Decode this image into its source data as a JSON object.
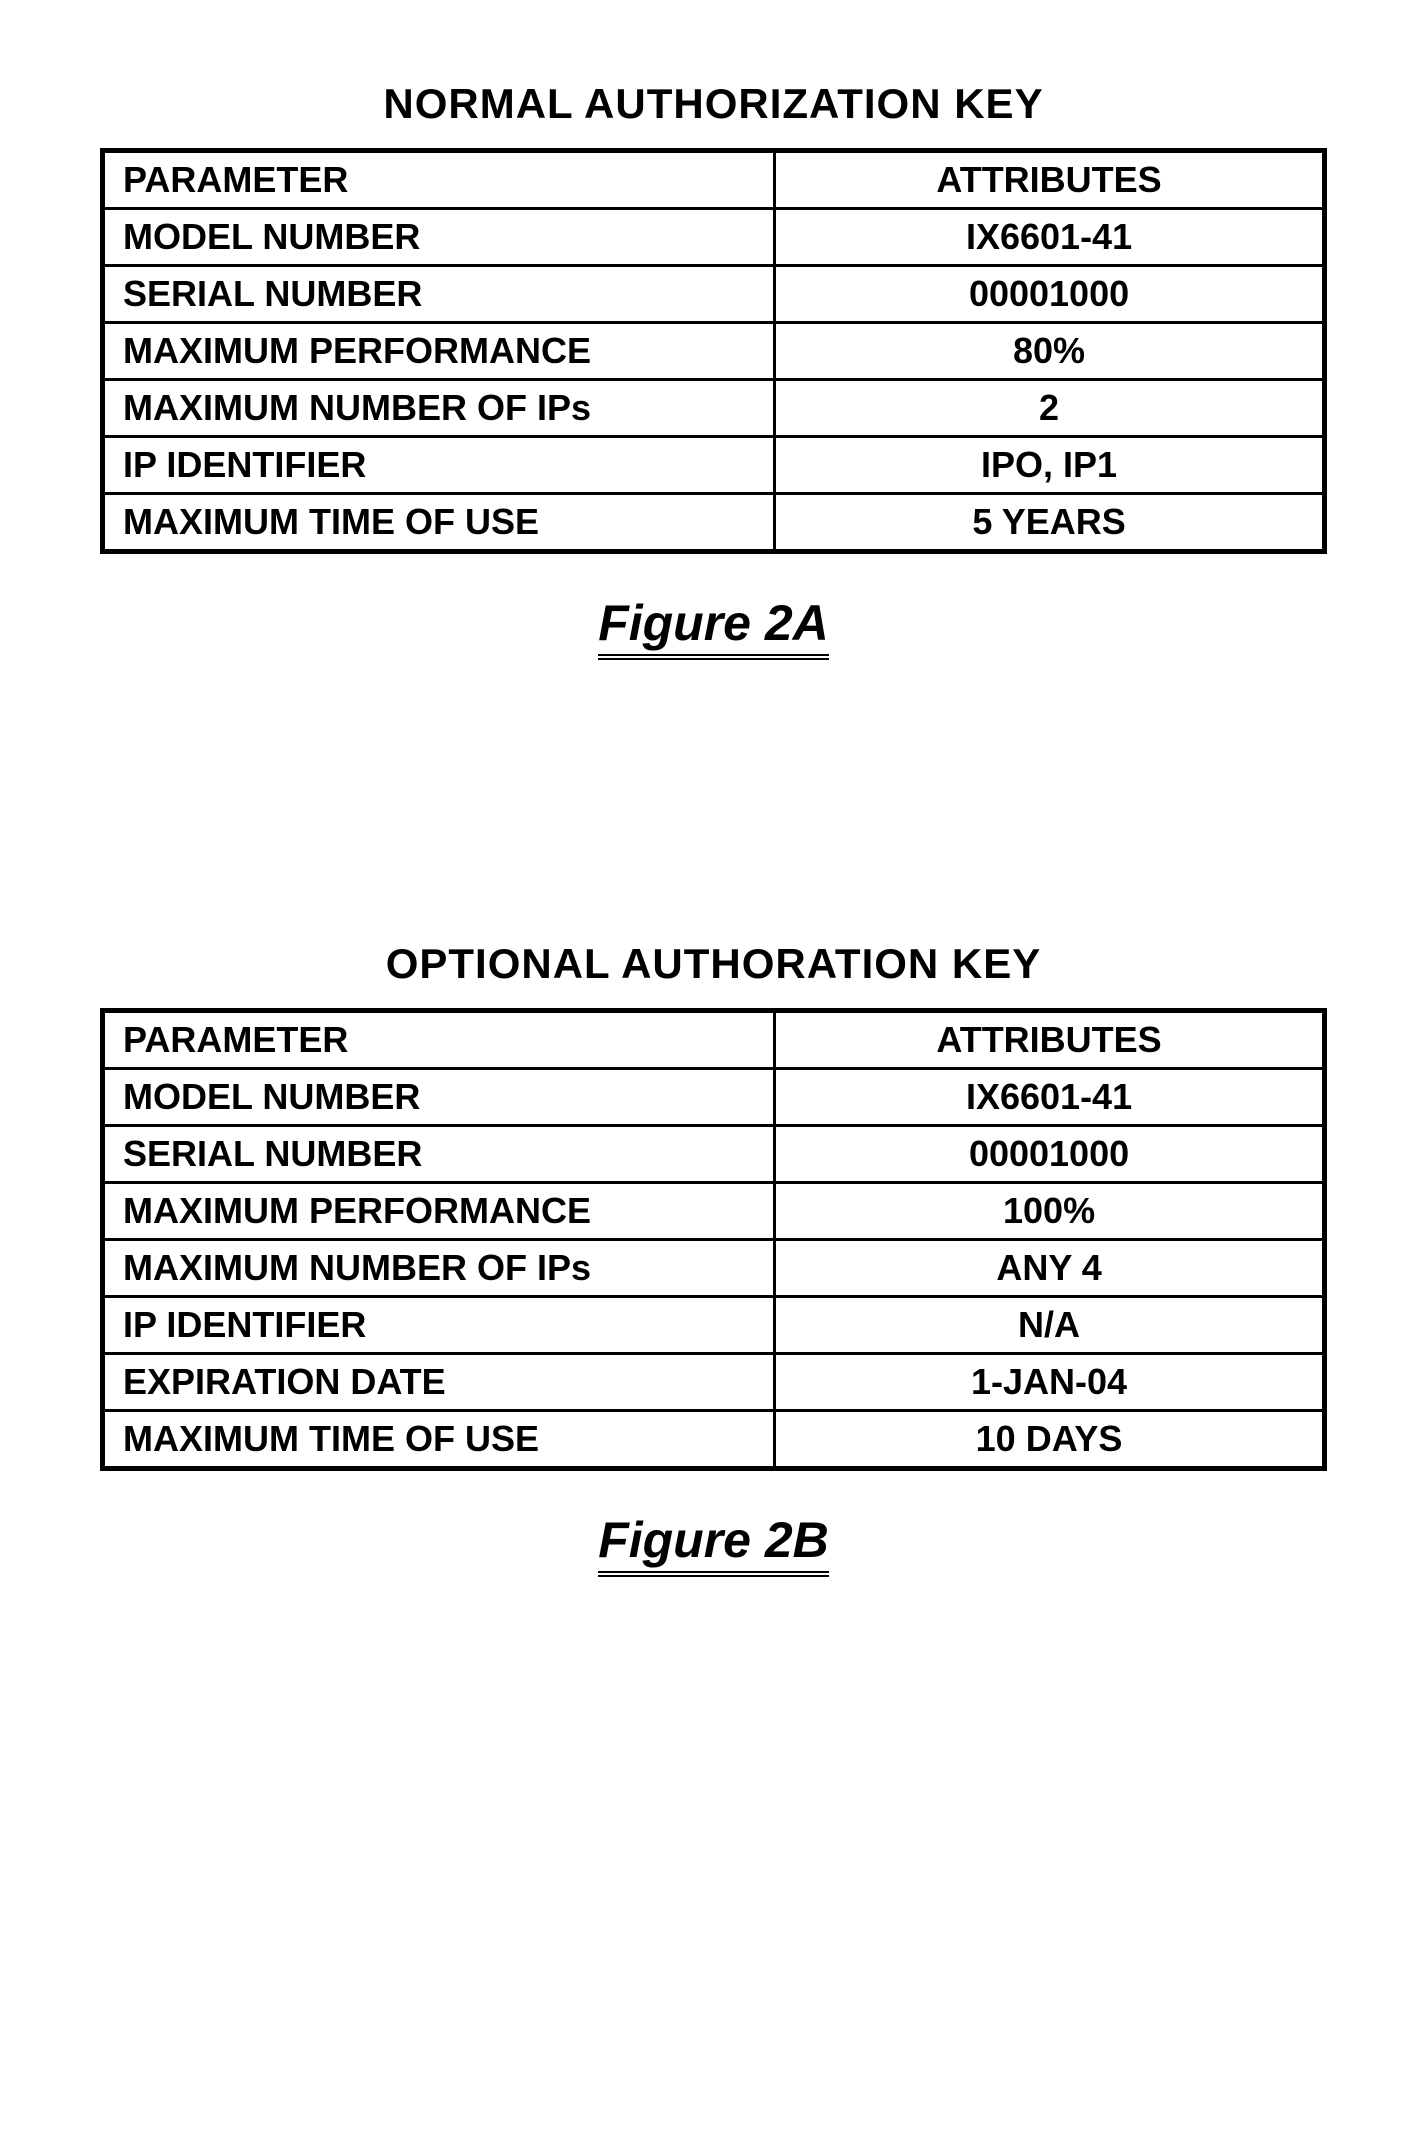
{
  "figureA": {
    "title": "NORMAL AUTHORIZATION KEY",
    "caption": "Figure 2A",
    "table": {
      "header": {
        "col1": "PARAMETER",
        "col2": "ATTRIBUTES"
      },
      "rows": [
        {
          "col1": "MODEL NUMBER",
          "col2": "IX6601-41"
        },
        {
          "col1": "SERIAL NUMBER",
          "col2": "00001000"
        },
        {
          "col1": "MAXIMUM PERFORMANCE",
          "col2": "80%"
        },
        {
          "col1": "MAXIMUM NUMBER OF IPs",
          "col2": "2"
        },
        {
          "col1": "IP IDENTIFIER",
          "col2": "IPO, IP1"
        },
        {
          "col1": "MAXIMUM TIME OF USE",
          "col2": "5 YEARS"
        }
      ]
    }
  },
  "figureB": {
    "title": "OPTIONAL AUTHORATION KEY",
    "caption": "Figure 2B",
    "table": {
      "header": {
        "col1": "PARAMETER",
        "col2": "ATTRIBUTES"
      },
      "rows": [
        {
          "col1": "MODEL NUMBER",
          "col2": "IX6601-41"
        },
        {
          "col1": "SERIAL NUMBER",
          "col2": "00001000"
        },
        {
          "col1": "MAXIMUM PERFORMANCE",
          "col2": "100%"
        },
        {
          "col1": "MAXIMUM NUMBER OF IPs",
          "col2": "ANY 4"
        },
        {
          "col1": "IP IDENTIFIER",
          "col2": "N/A"
        },
        {
          "col1": "EXPIRATION DATE",
          "col2": "1-JAN-04"
        },
        {
          "col1": "MAXIMUM TIME OF USE",
          "col2": "10 DAYS"
        }
      ]
    }
  },
  "style": {
    "border_color": "#000000",
    "background_color": "#ffffff",
    "text_color": "#000000",
    "title_fontsize": 42,
    "cell_fontsize": 36,
    "caption_fontsize": 50,
    "outer_border_width": 5,
    "inner_border_width": 3
  }
}
